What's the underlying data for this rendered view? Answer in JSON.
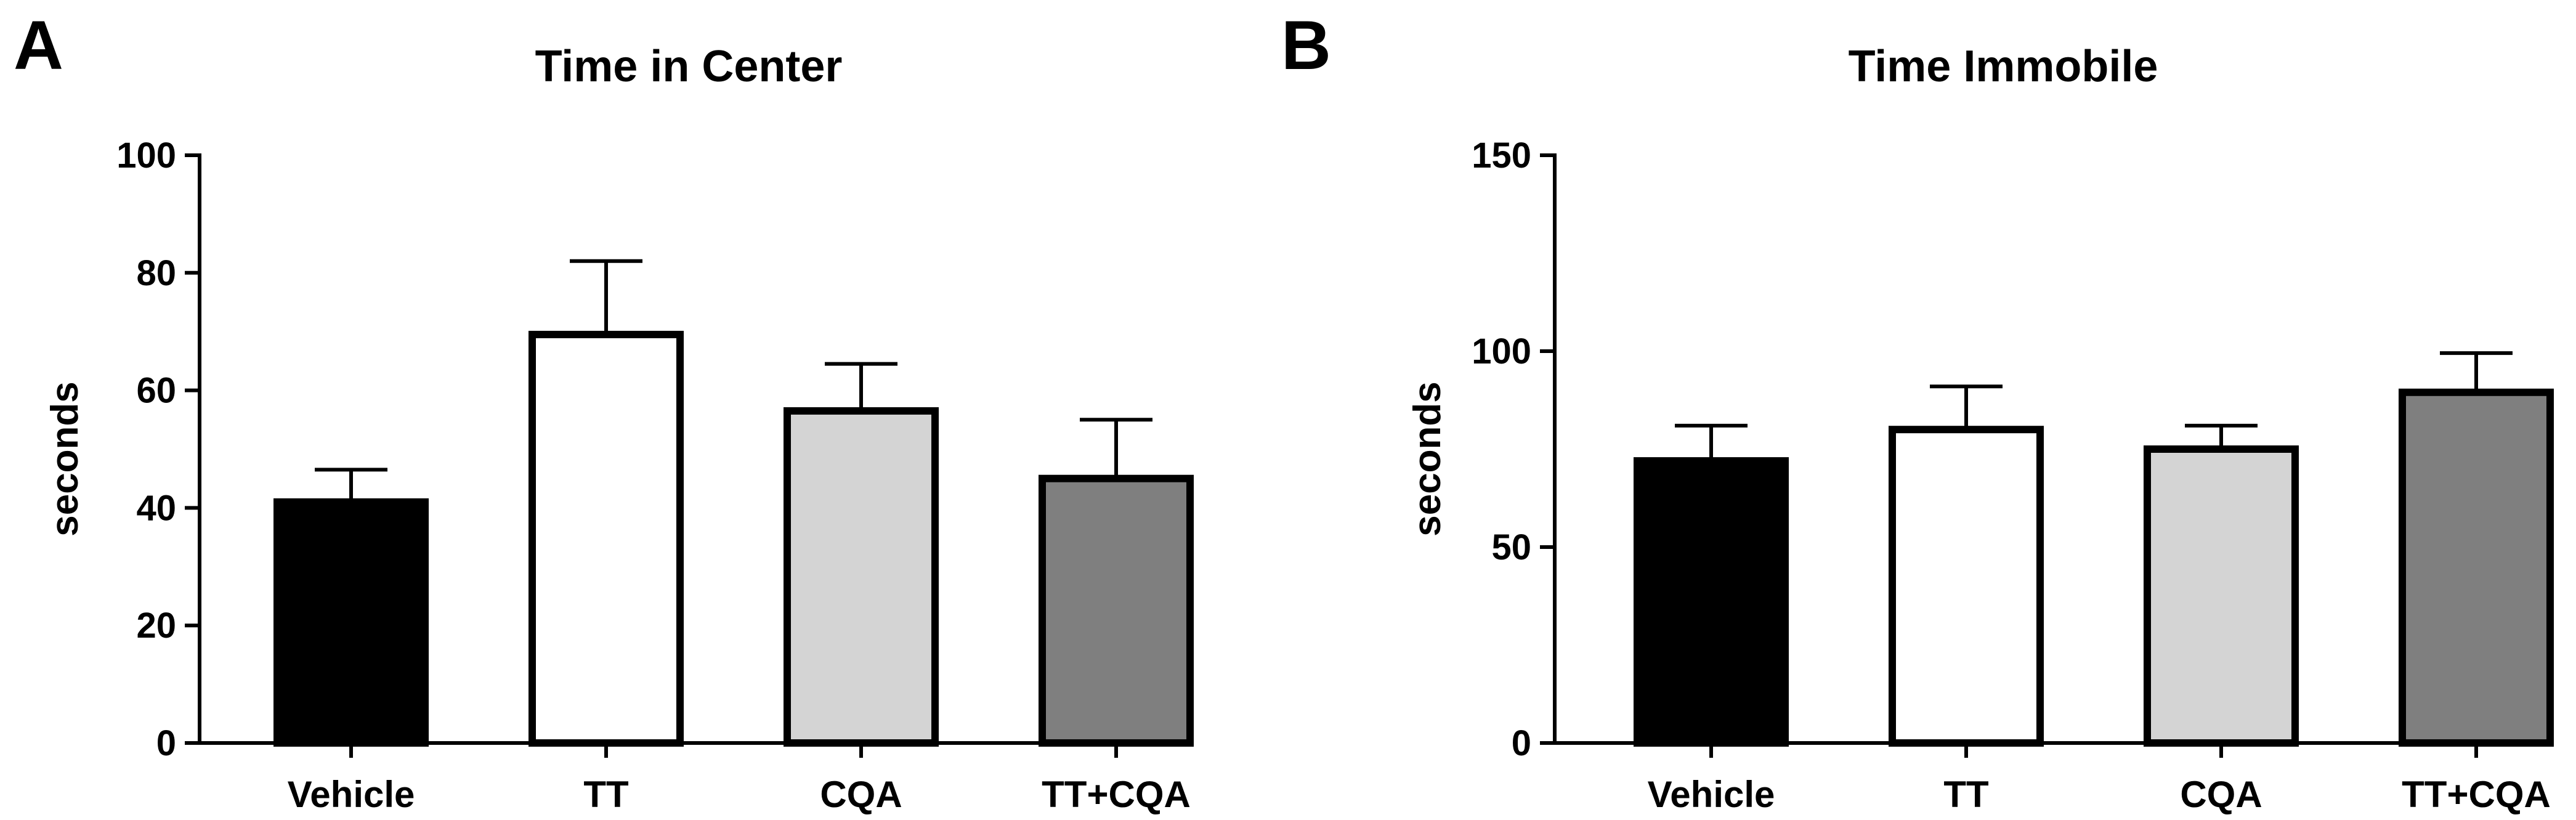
{
  "chart_data": [
    {
      "panel_letter": "A",
      "type": "bar",
      "title": "Time in Center",
      "xlabel": "",
      "ylabel": "seconds",
      "ylim": [
        0,
        100
      ],
      "yticks": [
        0,
        20,
        40,
        60,
        80,
        100
      ],
      "categories": [
        "Vehicle",
        "TT",
        "CQA",
        "TT+CQA"
      ],
      "values": [
        41,
        69.5,
        56.5,
        45
      ],
      "errors": [
        5.5,
        12.5,
        8,
        10
      ],
      "fill_colors": [
        "#000000",
        "#ffffff",
        "#d4d4d4",
        "#7f7f7f"
      ]
    },
    {
      "panel_letter": "B",
      "type": "bar",
      "title": "Time Immobile",
      "xlabel": "",
      "ylabel": "seconds",
      "ylim": [
        0,
        150
      ],
      "yticks": [
        0,
        50,
        100,
        150
      ],
      "categories": [
        "Vehicle",
        "TT",
        "CQA",
        "TT+CQA"
      ],
      "values": [
        72,
        80,
        75,
        89.5
      ],
      "errors": [
        9,
        11,
        6,
        10
      ],
      "fill_colors": [
        "#000000",
        "#ffffff",
        "#d4d4d4",
        "#7f7f7f"
      ]
    }
  ]
}
